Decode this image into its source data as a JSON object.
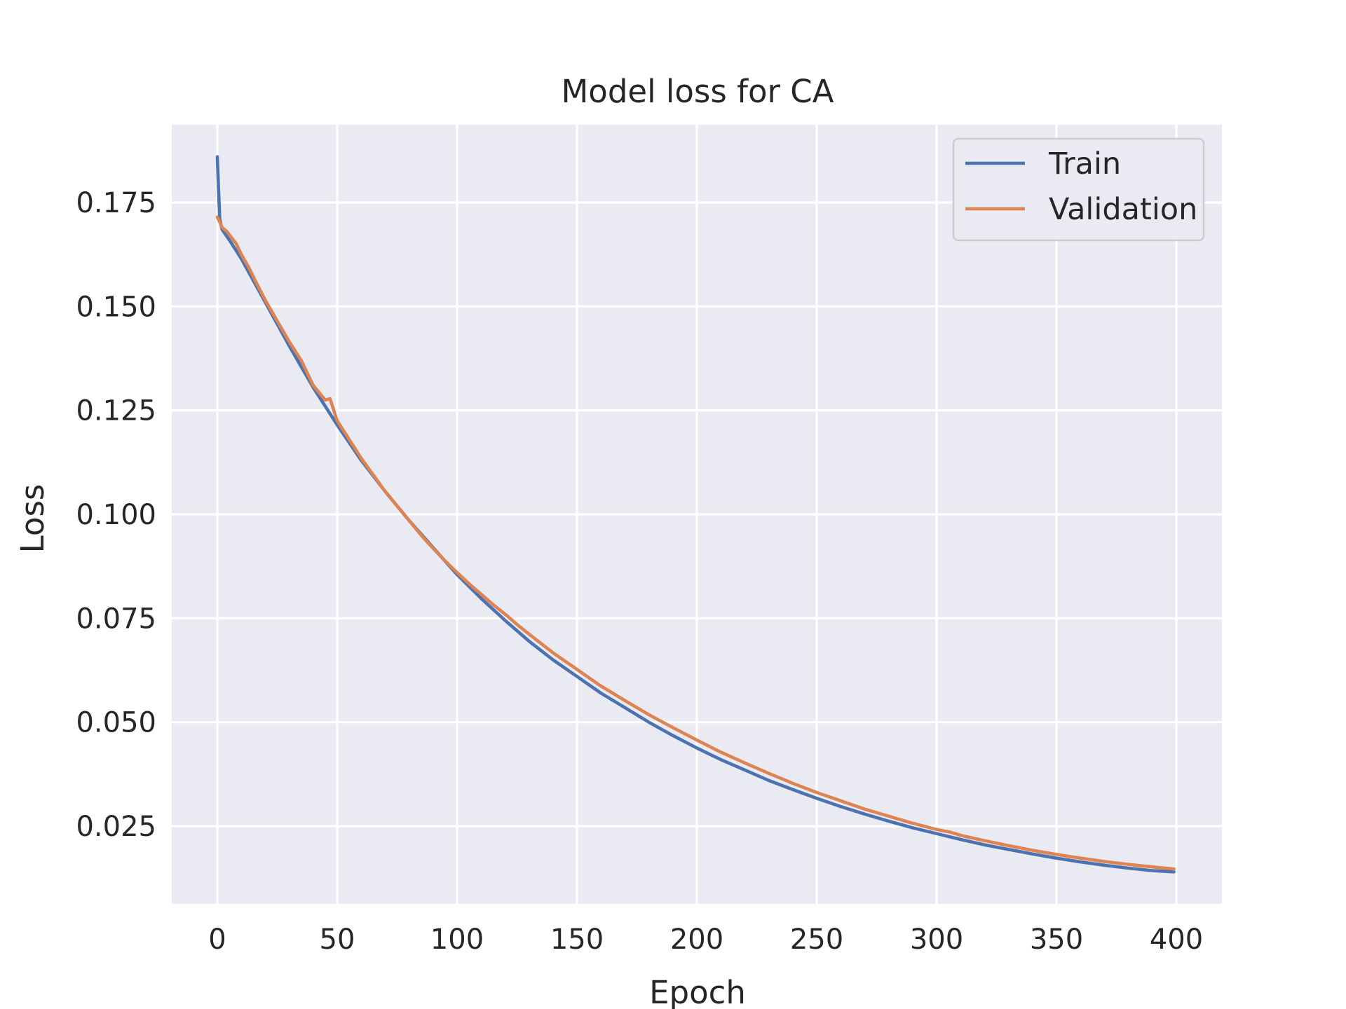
{
  "chart_data": {
    "type": "line",
    "title": "Model loss for CA",
    "xlabel": "Epoch",
    "ylabel": "Loss",
    "xlim": [
      -19,
      419
    ],
    "ylim": [
      0.0063,
      0.1937
    ],
    "xticks": [
      0,
      50,
      100,
      150,
      200,
      250,
      300,
      350,
      400
    ],
    "xtick_labels": [
      "0",
      "50",
      "100",
      "150",
      "200",
      "250",
      "300",
      "350",
      "400"
    ],
    "yticks": [
      0.025,
      0.05,
      0.075,
      0.1,
      0.125,
      0.15,
      0.175
    ],
    "ytick_labels": [
      "0.025",
      "0.050",
      "0.075",
      "0.100",
      "0.125",
      "0.150",
      "0.175"
    ],
    "grid": true,
    "legend_position": "top-right",
    "background_color": "#EAEAF2",
    "series": [
      {
        "name": "Train",
        "color": "#4C72B0",
        "x": [
          0,
          1,
          2,
          5,
          10,
          20,
          30,
          40,
          50,
          60,
          70,
          80,
          90,
          100,
          110,
          120,
          130,
          140,
          150,
          160,
          170,
          180,
          190,
          200,
          210,
          220,
          230,
          240,
          250,
          260,
          270,
          280,
          290,
          300,
          310,
          320,
          330,
          340,
          350,
          360,
          370,
          380,
          390,
          399
        ],
        "values": [
          0.186,
          0.171,
          0.1685,
          0.166,
          0.1615,
          0.151,
          0.1405,
          0.1305,
          0.1215,
          0.113,
          0.1055,
          0.0985,
          0.092,
          0.0855,
          0.0798,
          0.0745,
          0.0695,
          0.065,
          0.061,
          0.057,
          0.0535,
          0.05,
          0.0468,
          0.0438,
          0.041,
          0.0385,
          0.036,
          0.0338,
          0.0317,
          0.0297,
          0.0279,
          0.0262,
          0.0246,
          0.0232,
          0.0218,
          0.0205,
          0.0194,
          0.0183,
          0.0173,
          0.0164,
          0.0156,
          0.0149,
          0.0143,
          0.014
        ]
      },
      {
        "name": "Validation",
        "color": "#DD8452",
        "x": [
          0,
          2,
          4,
          6,
          8,
          10,
          13,
          16,
          20,
          25,
          30,
          35,
          40,
          45,
          47,
          50,
          55,
          60,
          65,
          70,
          75,
          80,
          85,
          90,
          95,
          100,
          105,
          110,
          115,
          120,
          125,
          130,
          140,
          150,
          160,
          170,
          180,
          190,
          200,
          210,
          220,
          230,
          240,
          250,
          260,
          270,
          280,
          290,
          300,
          306,
          310,
          320,
          330,
          340,
          350,
          360,
          370,
          380,
          390,
          399
        ],
        "values": [
          0.1715,
          0.169,
          0.168,
          0.1665,
          0.165,
          0.1625,
          0.1595,
          0.156,
          0.1515,
          0.1465,
          0.1415,
          0.137,
          0.131,
          0.1275,
          0.1278,
          0.1225,
          0.118,
          0.1135,
          0.1095,
          0.1055,
          0.102,
          0.0985,
          0.095,
          0.0918,
          0.0888,
          0.086,
          0.0833,
          0.0808,
          0.0783,
          0.076,
          0.0735,
          0.0712,
          0.0667,
          0.0627,
          0.0587,
          0.0552,
          0.0518,
          0.0487,
          0.0457,
          0.0428,
          0.0402,
          0.0377,
          0.0353,
          0.0331,
          0.0311,
          0.0291,
          0.0274,
          0.0257,
          0.0242,
          0.0235,
          0.0228,
          0.0215,
          0.0203,
          0.0192,
          0.0182,
          0.0173,
          0.0165,
          0.0158,
          0.0152,
          0.0147
        ]
      }
    ]
  }
}
